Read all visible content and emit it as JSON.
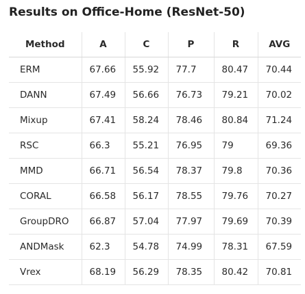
{
  "title": "Results on Office-Home (ResNet-50)",
  "table": {
    "headers": [
      "Method",
      "A",
      "C",
      "P",
      "R",
      "AVG"
    ],
    "rows": [
      [
        "ERM",
        "67.66",
        "55.92",
        "77.7",
        "80.47",
        "70.44"
      ],
      [
        "DANN",
        "67.49",
        "56.66",
        "76.73",
        "79.21",
        "70.02"
      ],
      [
        "Mixup",
        "67.41",
        "58.24",
        "78.46",
        "80.84",
        "71.24"
      ],
      [
        "RSC",
        "66.3",
        "55.21",
        "76.95",
        "79",
        "69.36"
      ],
      [
        "MMD",
        "66.71",
        "56.54",
        "78.37",
        "79.8",
        "70.36"
      ],
      [
        "CORAL",
        "66.58",
        "56.17",
        "78.55",
        "79.76",
        "70.27"
      ],
      [
        "GroupDRO",
        "66.87",
        "57.04",
        "77.97",
        "79.69",
        "70.39"
      ],
      [
        "ANDMask",
        "62.3",
        "54.78",
        "74.99",
        "78.31",
        "67.59"
      ],
      [
        "Vrex",
        "68.19",
        "56.29",
        "78.35",
        "80.42",
        "70.81"
      ]
    ]
  }
}
